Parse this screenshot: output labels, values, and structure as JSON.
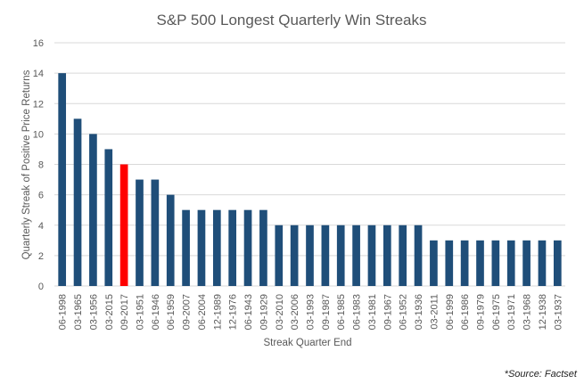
{
  "chart_data": {
    "type": "bar",
    "title": "S&P 500 Longest Quarterly Win Streaks",
    "xlabel": "Streak Quarter End",
    "ylabel": "Quarterly Streak of Positive Price Returns",
    "ylim": [
      0,
      16
    ],
    "yticks": [
      0,
      2,
      4,
      6,
      8,
      10,
      12,
      14,
      16
    ],
    "grid": true,
    "legend": "none",
    "categories": [
      "06-1998",
      "03-1965",
      "03-1956",
      "03-2015",
      "09-2017",
      "03-1951",
      "06-1946",
      "06-1959",
      "09-2007",
      "06-2004",
      "12-1989",
      "12-1976",
      "06-1943",
      "09-1929",
      "03-2010",
      "03-2006",
      "03-1993",
      "09-1987",
      "06-1985",
      "06-1983",
      "03-1981",
      "09-1967",
      "06-1952",
      "03-1936",
      "03-2011",
      "06-1999",
      "06-1986",
      "09-1979",
      "06-1975",
      "03-1971",
      "03-1968",
      "12-1938",
      "03-1937"
    ],
    "values": [
      14,
      11,
      10,
      9,
      8,
      7,
      7,
      6,
      5,
      5,
      5,
      5,
      5,
      5,
      4,
      4,
      4,
      4,
      4,
      4,
      4,
      4,
      4,
      4,
      3,
      3,
      3,
      3,
      3,
      3,
      3,
      3,
      3
    ],
    "highlight_index": 4,
    "colors": {
      "bar": "#1f4e79",
      "highlight": "#ff0000"
    }
  },
  "source_note": "*Source: Factset"
}
